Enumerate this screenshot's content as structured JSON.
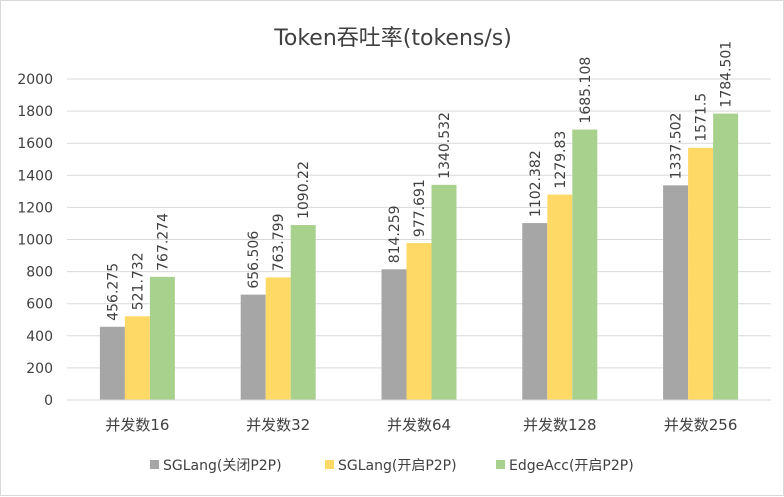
{
  "chart_data": {
    "type": "bar",
    "title": "Token吞吐率(tokens/s)",
    "categories": [
      "并发数16",
      "并发数32",
      "并发数64",
      "并发数128",
      "并发数256"
    ],
    "series": [
      {
        "name": "SGLang(关闭P2P)",
        "color": "#a6a6a6",
        "values": [
          456.275,
          656.506,
          814.259,
          1102.382,
          1337.502
        ],
        "labels": [
          "456.275",
          "656.506",
          "814.259",
          "1102.382",
          "1337.502"
        ]
      },
      {
        "name": "SGLang(开启P2P)",
        "color": "#ffd966",
        "values": [
          521.732,
          763.799,
          977.691,
          1279.83,
          1571.5
        ],
        "labels": [
          "521.732",
          "763.799",
          "977.691",
          "1279.83",
          "1571.5"
        ]
      },
      {
        "name": "EdgeAcc(开启P2P)",
        "color": "#a9d18e",
        "values": [
          767.274,
          1090.22,
          1340.532,
          1685.108,
          1784.501
        ],
        "labels": [
          "767.274",
          "1090.22",
          "1340.532",
          "1685.108",
          "1784.501"
        ]
      }
    ],
    "ylim": [
      0,
      2000
    ],
    "yticks": [
      "0",
      "200",
      "400",
      "600",
      "800",
      "1000",
      "1200",
      "1400",
      "1600",
      "1800",
      "2000"
    ],
    "xlabel": "",
    "ylabel": "",
    "grid": true,
    "legend_position": "bottom"
  }
}
